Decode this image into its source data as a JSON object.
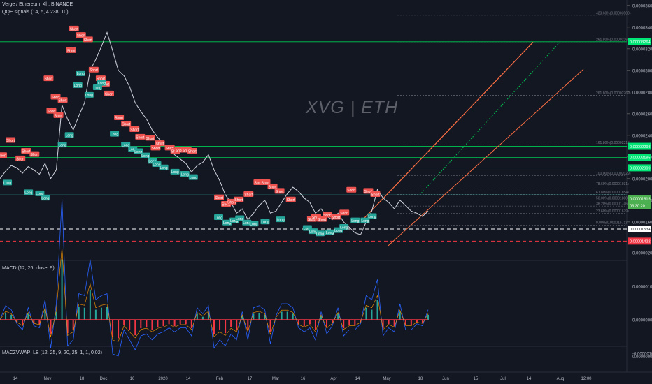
{
  "header": {
    "symbol_line": "Verge / Ethereum, 4h, BINANCE",
    "indicator_line": "QQE signals (14, 5, 4.238, 10)",
    "watermark": "XVG | ETH"
  },
  "macd": {
    "label": "MACD (12, 26, close, 9)"
  },
  "maczvwap": {
    "label": "MACZVWAP_LB (12, 25, 9, 20, 25, 1, 1, 0.02)"
  },
  "price_axis": {
    "ticks": [
      "0.00003600",
      "0.00003400",
      "0.00003200",
      "0.00003000",
      "0.00002800",
      "0.00002600",
      "0.00002400",
      "0.00002200",
      "0.00002000",
      "0.00001800",
      "0.00001600"
    ],
    "macd_ticks": [
      "0.00000200",
      "0.00000100",
      "0.00000000",
      "-0.00000100"
    ],
    "vwap_ticks": [
      "0.00000000"
    ]
  },
  "time_axis": [
    "14",
    "Nov",
    "18",
    "Dec",
    "16",
    "2020",
    "14",
    "Feb",
    "17",
    "Mar",
    "16",
    "Apr",
    "14",
    "May",
    "18",
    "Jun",
    "15",
    "Jul",
    "14",
    "Aug",
    "12:00"
  ],
  "levels": [
    {
      "label": "423.60%(0.00003509)",
      "value": 3.509e-05
    },
    {
      "label": "261.80%(0.00003264)",
      "value": 3.264e-05
    },
    {
      "label": "261.80%(0.00002769)",
      "value": 2.769e-05
    },
    {
      "label": "161.80%(0.00002311)",
      "value": 2.311e-05
    },
    {
      "label": "100.00%(0.00002029)",
      "value": 2.029e-05
    },
    {
      "label": "78.60%(0.00001931)",
      "value": 1.931e-05
    },
    {
      "label": "61.80%(0.00001854)",
      "value": 1.854e-05
    },
    {
      "label": "50.00%(0.00001800)",
      "value": 1.8e-05
    },
    {
      "label": "38.20%(0.00001746)",
      "value": 1.746e-05
    },
    {
      "label": "23.60%(0.00001679)",
      "value": 1.679e-05
    },
    {
      "label": "0.00%(0.00001571)",
      "value": 1.571e-05
    }
  ],
  "badges": [
    {
      "text": "0.00003264",
      "value": 3.264e-05,
      "color": "#00e676"
    },
    {
      "text": "0.00002298",
      "value": 2.298e-05,
      "color": "#00e676"
    },
    {
      "text": "0.00002195",
      "value": 2.195e-05,
      "color": "#00e676"
    },
    {
      "text": "0.00002099",
      "value": 2.099e-05,
      "color": "#00e676"
    },
    {
      "text": "0.00001815",
      "value": 1.815e-05,
      "color": "#4caf50"
    },
    {
      "text": "03:30:20",
      "value": 1.75e-05,
      "color": "#4caf50"
    },
    {
      "text": "0.00001534",
      "value": 1.534e-05,
      "color": "#ffffff"
    },
    {
      "text": "0.00001422",
      "value": 1.422e-05,
      "color": "#f23645"
    }
  ],
  "chart_data": {
    "type": "line",
    "title": "",
    "xlabel": "",
    "ylabel": "",
    "ylim": [
      1.25e-05,
      3.65e-05
    ],
    "x": [
      0,
      4,
      8,
      12,
      16,
      20,
      24,
      28,
      32,
      36,
      40,
      44,
      48,
      52,
      56,
      60,
      64,
      68,
      72,
      76,
      80,
      84,
      88,
      92,
      96,
      100,
      104,
      108,
      112,
      116,
      120,
      124,
      128,
      132,
      136,
      140,
      144,
      148,
      152,
      156,
      160,
      164,
      168,
      172,
      176,
      180,
      184,
      188,
      192,
      196,
      200,
      204,
      208,
      212,
      216,
      220,
      224,
      228,
      232,
      236,
      240,
      244,
      248,
      252,
      256,
      260,
      264,
      268,
      272,
      276,
      280,
      284,
      288,
      292,
      296,
      300,
      304
    ],
    "series": [
      {
        "values": [
          2e-05,
          2.07e-05,
          2.12e-05,
          2.1e-05,
          2.05e-05,
          2.11e-05,
          2.08e-05,
          2.04e-05,
          2.14e-05,
          2e-05,
          2.08e-05,
          2.68e-05,
          2.55e-05,
          2.45e-05,
          2.58e-05,
          2.7e-05,
          3e-05,
          3.1e-05,
          3.22e-05,
          3.35e-05,
          3.18e-05,
          3e-05,
          2.95e-05,
          2.85e-05,
          2.7e-05,
          2.62e-05,
          2.55e-05,
          2.45e-05,
          2.38e-05,
          2.32e-05,
          2.28e-05,
          2.22e-05,
          2.18e-05,
          2.14e-05,
          2.06e-05,
          2.12e-05,
          2.15e-05,
          2.22e-05,
          2.08e-05,
          1.98e-05,
          1.85e-05,
          1.78e-05,
          1.68e-05,
          1.72e-05,
          1.62e-05,
          1.68e-05,
          1.75e-05,
          1.8e-05,
          1.68e-05,
          1.7e-05,
          1.78e-05,
          1.86e-05,
          1.92e-05,
          1.88e-05,
          1.82e-05,
          1.78e-05,
          1.68e-05,
          1.72e-05,
          1.65e-05,
          1.62e-05,
          1.68e-05,
          1.6e-05,
          1.55e-05,
          1.5e-05,
          1.48e-05,
          1.6e-05,
          1.7e-05,
          1.9e-05,
          1.82e-05,
          1.78e-05,
          1.72e-05,
          1.8e-05,
          1.75e-05,
          1.7e-05,
          1.68e-05,
          1.65e-05,
          1.7e-05
        ]
      }
    ],
    "signals": {
      "short": [
        [
          1,
          2.21e-05
        ],
        [
          7,
          2.35e-05
        ],
        [
          14,
          2.18e-05
        ],
        [
          18,
          2.25e-05
        ],
        [
          24,
          2.22e-05
        ],
        [
          34,
          2.92e-05
        ],
        [
          36,
          2.62e-05
        ],
        [
          39,
          2.75e-05
        ],
        [
          41,
          2.58e-05
        ],
        [
          44,
          2.72e-05
        ],
        [
          50,
          3.18e-05
        ],
        [
          52,
          3.38e-05
        ],
        [
          57,
          3.32e-05
        ],
        [
          62,
          3.28e-05
        ],
        [
          66,
          3e-05
        ],
        [
          71,
          2.92e-05
        ],
        [
          74,
          2.87e-05
        ],
        [
          77,
          2.78e-05
        ],
        [
          84,
          2.56e-05
        ],
        [
          89,
          2.5e-05
        ],
        [
          95,
          2.45e-05
        ],
        [
          99,
          2.38e-05
        ],
        [
          106,
          2.37e-05
        ],
        [
          110,
          2.28e-05
        ],
        [
          113,
          2.32e-05
        ],
        [
          120,
          2.28e-05
        ],
        [
          124,
          2.25e-05
        ],
        [
          127,
          2.26e-05
        ],
        [
          132,
          2.26e-05
        ],
        [
          136,
          2.25e-05
        ],
        [
          155,
          1.82e-05
        ],
        [
          160,
          1.76e-05
        ],
        [
          164,
          1.78e-05
        ],
        [
          169,
          1.8e-05
        ],
        [
          176,
          1.85e-05
        ],
        [
          183,
          1.96e-05
        ],
        [
          188,
          1.96e-05
        ],
        [
          193,
          1.92e-05
        ],
        [
          198,
          1.88e-05
        ],
        [
          206,
          1.8e-05
        ],
        [
          221,
          1.62e-05
        ],
        [
          224,
          1.64e-05
        ],
        [
          228,
          1.62e-05
        ],
        [
          232,
          1.66e-05
        ],
        [
          238,
          1.64e-05
        ],
        [
          244,
          1.68e-05
        ],
        [
          249,
          1.89e-05
        ],
        [
          261,
          1.88e-05
        ],
        [
          266,
          1.85e-05
        ]
      ],
      "long": [
        [
          5,
          1.97e-05
        ],
        [
          20,
          1.88e-05
        ],
        [
          28,
          1.87e-05
        ],
        [
          32,
          1.83e-05
        ],
        [
          44,
          2.32e-05
        ],
        [
          49,
          2.41e-05
        ],
        [
          55,
          2.87e-05
        ],
        [
          57,
          2.98e-05
        ],
        [
          63,
          2.78e-05
        ],
        [
          69,
          2.85e-05
        ],
        [
          72,
          2.89e-05
        ],
        [
          81,
          2.42e-05
        ],
        [
          89,
          2.32e-05
        ],
        [
          94,
          2.28e-05
        ],
        [
          98,
          2.26e-05
        ],
        [
          103,
          2.22e-05
        ],
        [
          108,
          2.17e-05
        ],
        [
          111,
          2.14e-05
        ],
        [
          116,
          2.11e-05
        ],
        [
          124,
          2.07e-05
        ],
        [
          131,
          2.05e-05
        ],
        [
          137,
          2.02e-05
        ],
        [
          155,
          1.65e-05
        ],
        [
          161,
          1.6e-05
        ],
        [
          166,
          1.62e-05
        ],
        [
          170,
          1.64e-05
        ],
        [
          175,
          1.6e-05
        ],
        [
          180,
          1.59e-05
        ],
        [
          188,
          1.61e-05
        ],
        [
          199,
          1.63e-05
        ],
        [
          218,
          1.55e-05
        ],
        [
          222,
          1.52e-05
        ],
        [
          227,
          1.5e-05
        ],
        [
          234,
          1.51e-05
        ],
        [
          240,
          1.53e-05
        ],
        [
          244,
          1.56e-05
        ],
        [
          252,
          1.62e-05
        ],
        [
          259,
          1.62e-05
        ],
        [
          264,
          1.66e-05
        ]
      ]
    }
  }
}
